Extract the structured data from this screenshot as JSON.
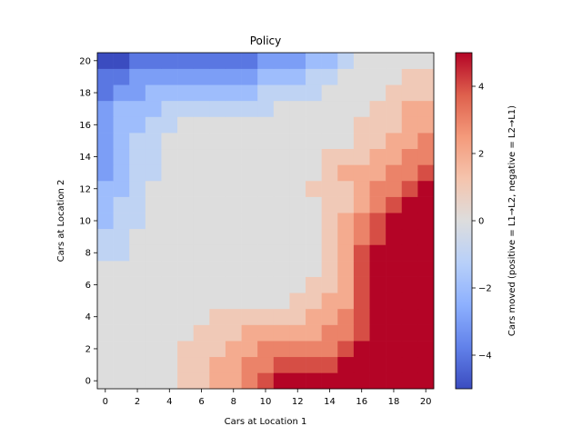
{
  "chart_data": {
    "type": "heatmap",
    "title": "Policy",
    "xlabel": "Cars at Location 1",
    "ylabel": "Cars at Location 2",
    "colorbar_label": "Cars moved (positive = L1→L2, negative = L2→L1)",
    "colormap": "coolwarm",
    "vmin": -5,
    "vmax": 5,
    "x_ticks": [
      0,
      2,
      4,
      6,
      8,
      10,
      12,
      14,
      16,
      18,
      20
    ],
    "y_ticks": [
      0,
      2,
      4,
      6,
      8,
      10,
      12,
      14,
      16,
      18,
      20
    ],
    "colorbar_ticks": [
      -4,
      -2,
      0,
      2,
      4
    ],
    "grid": false,
    "note_rows": "rows[i] is the policy for Cars at Location 2 = i, columns are Cars at Location 1 = 0..20",
    "rows": [
      [
        0,
        0,
        0,
        0,
        0,
        1,
        1,
        2,
        2,
        3,
        4,
        5,
        5,
        5,
        5,
        5,
        5,
        5,
        5,
        5,
        5
      ],
      [
        0,
        0,
        0,
        0,
        0,
        1,
        1,
        2,
        2,
        3,
        3,
        4,
        4,
        4,
        4,
        5,
        5,
        5,
        5,
        5,
        5
      ],
      [
        0,
        0,
        0,
        0,
        0,
        1,
        1,
        1,
        2,
        2,
        3,
        3,
        3,
        3,
        3,
        4,
        5,
        5,
        5,
        5,
        5
      ],
      [
        0,
        0,
        0,
        0,
        0,
        0,
        1,
        1,
        1,
        2,
        2,
        2,
        2,
        2,
        3,
        3,
        4,
        5,
        5,
        5,
        5
      ],
      [
        0,
        0,
        0,
        0,
        0,
        0,
        0,
        1,
        1,
        1,
        1,
        1,
        1,
        2,
        2,
        3,
        4,
        5,
        5,
        5,
        5
      ],
      [
        0,
        0,
        0,
        0,
        0,
        0,
        0,
        0,
        0,
        0,
        0,
        0,
        1,
        1,
        2,
        2,
        4,
        5,
        5,
        5,
        5
      ],
      [
        0,
        0,
        0,
        0,
        0,
        0,
        0,
        0,
        0,
        0,
        0,
        0,
        0,
        1,
        1,
        2,
        4,
        5,
        5,
        5,
        5
      ],
      [
        0,
        0,
        0,
        0,
        0,
        0,
        0,
        0,
        0,
        0,
        0,
        0,
        0,
        0,
        1,
        2,
        4,
        5,
        5,
        5,
        5
      ],
      [
        -1,
        -1,
        0,
        0,
        0,
        0,
        0,
        0,
        0,
        0,
        0,
        0,
        0,
        0,
        1,
        2,
        4,
        5,
        5,
        5,
        5
      ],
      [
        -1,
        -1,
        0,
        0,
        0,
        0,
        0,
        0,
        0,
        0,
        0,
        0,
        0,
        0,
        1,
        2,
        3,
        4,
        5,
        5,
        5
      ],
      [
        -2,
        -1,
        -1,
        0,
        0,
        0,
        0,
        0,
        0,
        0,
        0,
        0,
        0,
        0,
        1,
        2,
        3,
        4,
        5,
        5,
        5
      ],
      [
        -2,
        -1,
        -1,
        0,
        0,
        0,
        0,
        0,
        0,
        0,
        0,
        0,
        0,
        0,
        1,
        1,
        2,
        3,
        4,
        5,
        5
      ],
      [
        -2,
        -2,
        -1,
        0,
        0,
        0,
        0,
        0,
        0,
        0,
        0,
        0,
        0,
        1,
        1,
        1,
        2,
        3,
        3,
        4,
        5
      ],
      [
        -3,
        -2,
        -1,
        -1,
        0,
        0,
        0,
        0,
        0,
        0,
        0,
        0,
        0,
        0,
        1,
        2,
        2,
        2,
        3,
        3,
        4
      ],
      [
        -3,
        -2,
        -1,
        -1,
        0,
        0,
        0,
        0,
        0,
        0,
        0,
        0,
        0,
        0,
        1,
        1,
        1,
        2,
        2,
        3,
        3
      ],
      [
        -3,
        -2,
        -1,
        -1,
        0,
        0,
        0,
        0,
        0,
        0,
        0,
        0,
        0,
        0,
        0,
        0,
        1,
        1,
        2,
        2,
        3
      ],
      [
        -3,
        -2,
        -2,
        -1,
        -1,
        0,
        0,
        0,
        0,
        0,
        0,
        0,
        0,
        0,
        0,
        0,
        1,
        1,
        1,
        2,
        2
      ],
      [
        -3,
        -2,
        -2,
        -2,
        -1,
        -1,
        -1,
        -1,
        -1,
        -1,
        -1,
        0,
        0,
        0,
        0,
        0,
        0,
        1,
        1,
        2,
        2
      ],
      [
        -4,
        -3,
        -3,
        -2,
        -2,
        -2,
        -2,
        -2,
        -2,
        -2,
        -1,
        -1,
        -1,
        -1,
        0,
        0,
        0,
        0,
        1,
        1,
        1
      ],
      [
        -4,
        -4,
        -3,
        -3,
        -3,
        -3,
        -3,
        -3,
        -3,
        -3,
        -2,
        -2,
        -2,
        -1,
        -1,
        0,
        0,
        0,
        0,
        1,
        1
      ],
      [
        -5,
        -5,
        -4,
        -4,
        -4,
        -4,
        -4,
        -4,
        -4,
        -4,
        -3,
        -3,
        -3,
        -2,
        -2,
        -1,
        0,
        0,
        0,
        0,
        0
      ]
    ]
  }
}
